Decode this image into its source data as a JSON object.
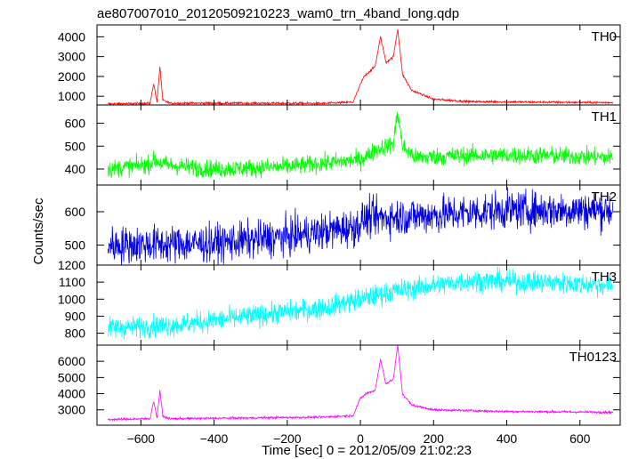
{
  "chart_data": {
    "type": "line",
    "title": "ae807007010_20120509210223_wam0_trn_4band_long.qdp",
    "xlabel": "Time [sec] 0 = 2012/05/09 21:02:23",
    "ylabel": "Counts/sec",
    "xlim": [
      -720,
      710
    ],
    "x_ticks": [
      -600,
      -400,
      -200,
      0,
      200,
      400,
      600
    ],
    "x_tick_labels": [
      "−600",
      "−400",
      "−200",
      "0",
      "200",
      "400",
      "600"
    ],
    "grid": false,
    "panels": [
      {
        "name": "TH0",
        "color": "#ff0000",
        "ylim": [
          560,
          4600
        ],
        "yticks": [
          1000,
          2000,
          3000,
          4000
        ],
        "ytick_labels": [
          "1000",
          "2000",
          "3000",
          "4000"
        ],
        "noise": 40,
        "profile": [
          [
            -690,
            620
          ],
          [
            -575,
            640
          ],
          [
            -565,
            1650
          ],
          [
            -556,
            700
          ],
          [
            -548,
            2500
          ],
          [
            -540,
            800
          ],
          [
            -520,
            650
          ],
          [
            -300,
            650
          ],
          [
            -100,
            640
          ],
          [
            -20,
            700
          ],
          [
            0,
            1600
          ],
          [
            10,
            2000
          ],
          [
            40,
            2500
          ],
          [
            55,
            4000
          ],
          [
            70,
            2700
          ],
          [
            90,
            3000
          ],
          [
            102,
            4400
          ],
          [
            115,
            2100
          ],
          [
            140,
            1300
          ],
          [
            200,
            850
          ],
          [
            300,
            730
          ],
          [
            500,
            700
          ],
          [
            690,
            680
          ]
        ]
      },
      {
        "name": "TH1",
        "color": "#00ff00",
        "ylim": [
          330,
          680
        ],
        "yticks": [
          400,
          500,
          600
        ],
        "ytick_labels": [
          "400",
          "500",
          "600"
        ],
        "noise": 28,
        "profile": [
          [
            -690,
            400
          ],
          [
            -580,
            420
          ],
          [
            -560,
            440
          ],
          [
            -540,
            420
          ],
          [
            -400,
            400
          ],
          [
            -200,
            410
          ],
          [
            0,
            440
          ],
          [
            50,
            490
          ],
          [
            90,
            510
          ],
          [
            102,
            650
          ],
          [
            115,
            500
          ],
          [
            150,
            450
          ],
          [
            300,
            460
          ],
          [
            500,
            460
          ],
          [
            690,
            450
          ]
        ]
      },
      {
        "name": "TH2",
        "color": "#0000e0",
        "ylim": [
          440,
          680
        ],
        "yticks": [
          500,
          600
        ],
        "ytick_labels": [
          "500",
          "600"
        ],
        "noise": 40,
        "profile": [
          [
            -690,
            500
          ],
          [
            -400,
            505
          ],
          [
            -200,
            525
          ],
          [
            -10,
            555
          ],
          [
            10,
            580
          ],
          [
            200,
            590
          ],
          [
            400,
            605
          ],
          [
            690,
            605
          ]
        ]
      },
      {
        "name": "TH3",
        "color": "#00ffff",
        "ylim": [
          730,
          1200
        ],
        "yticks": [
          800,
          900,
          1000,
          1100,
          1200
        ],
        "ytick_labels": [
          "800",
          "900",
          "1000",
          "1100",
          "1200"
        ],
        "noise": 45,
        "profile": [
          [
            -690,
            830
          ],
          [
            -500,
            850
          ],
          [
            -300,
            900
          ],
          [
            -100,
            950
          ],
          [
            0,
            1000
          ],
          [
            100,
            1050
          ],
          [
            300,
            1110
          ],
          [
            500,
            1100
          ],
          [
            690,
            1080
          ]
        ]
      },
      {
        "name": "TH0123",
        "color": "#ff00ff",
        "ylim": [
          2050,
          7000
        ],
        "yticks": [
          3000,
          4000,
          5000,
          6000
        ],
        "ytick_labels": [
          "3000",
          "4000",
          "5000",
          "6000"
        ],
        "noise": 50,
        "profile": [
          [
            -690,
            2400
          ],
          [
            -575,
            2450
          ],
          [
            -565,
            3550
          ],
          [
            -556,
            2500
          ],
          [
            -548,
            4200
          ],
          [
            -540,
            2600
          ],
          [
            -520,
            2450
          ],
          [
            -300,
            2500
          ],
          [
            -100,
            2550
          ],
          [
            -20,
            2650
          ],
          [
            0,
            3700
          ],
          [
            15,
            4000
          ],
          [
            40,
            4200
          ],
          [
            55,
            6100
          ],
          [
            70,
            4600
          ],
          [
            90,
            4900
          ],
          [
            102,
            7000
          ],
          [
            115,
            4000
          ],
          [
            140,
            3300
          ],
          [
            200,
            3000
          ],
          [
            400,
            2900
          ],
          [
            690,
            2850
          ]
        ]
      }
    ]
  }
}
